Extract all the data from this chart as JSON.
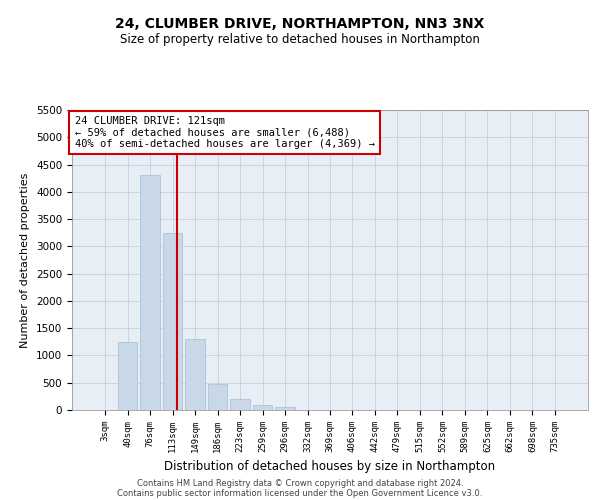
{
  "title": "24, CLUMBER DRIVE, NORTHAMPTON, NN3 3NX",
  "subtitle": "Size of property relative to detached houses in Northampton",
  "xlabel": "Distribution of detached houses by size in Northampton",
  "ylabel": "Number of detached properties",
  "footer_line1": "Contains HM Land Registry data © Crown copyright and database right 2024.",
  "footer_line2": "Contains public sector information licensed under the Open Government Licence v3.0.",
  "bar_color": "#c8d8e8",
  "bar_edge_color": "#a8bece",
  "grid_color": "#c0cad8",
  "annotation_box_color": "#cc0000",
  "vline_color": "#cc0000",
  "categories": [
    "3sqm",
    "40sqm",
    "76sqm",
    "113sqm",
    "149sqm",
    "186sqm",
    "223sqm",
    "259sqm",
    "296sqm",
    "332sqm",
    "369sqm",
    "406sqm",
    "442sqm",
    "479sqm",
    "515sqm",
    "552sqm",
    "589sqm",
    "625sqm",
    "662sqm",
    "698sqm",
    "735sqm"
  ],
  "values": [
    0,
    1250,
    4300,
    3250,
    1300,
    480,
    200,
    90,
    60,
    0,
    0,
    0,
    0,
    0,
    0,
    0,
    0,
    0,
    0,
    0,
    0
  ],
  "annotation_line1": "24 CLUMBER DRIVE: 121sqm",
  "annotation_line2": "← 59% of detached houses are smaller (6,488)",
  "annotation_line3": "40% of semi-detached houses are larger (4,369) →",
  "vline_x": 3.22,
  "ylim": [
    0,
    5500
  ],
  "yticks": [
    0,
    500,
    1000,
    1500,
    2000,
    2500,
    3000,
    3500,
    4000,
    4500,
    5000,
    5500
  ],
  "background_color": "#ffffff",
  "plot_bg_color": "#e8eef5"
}
